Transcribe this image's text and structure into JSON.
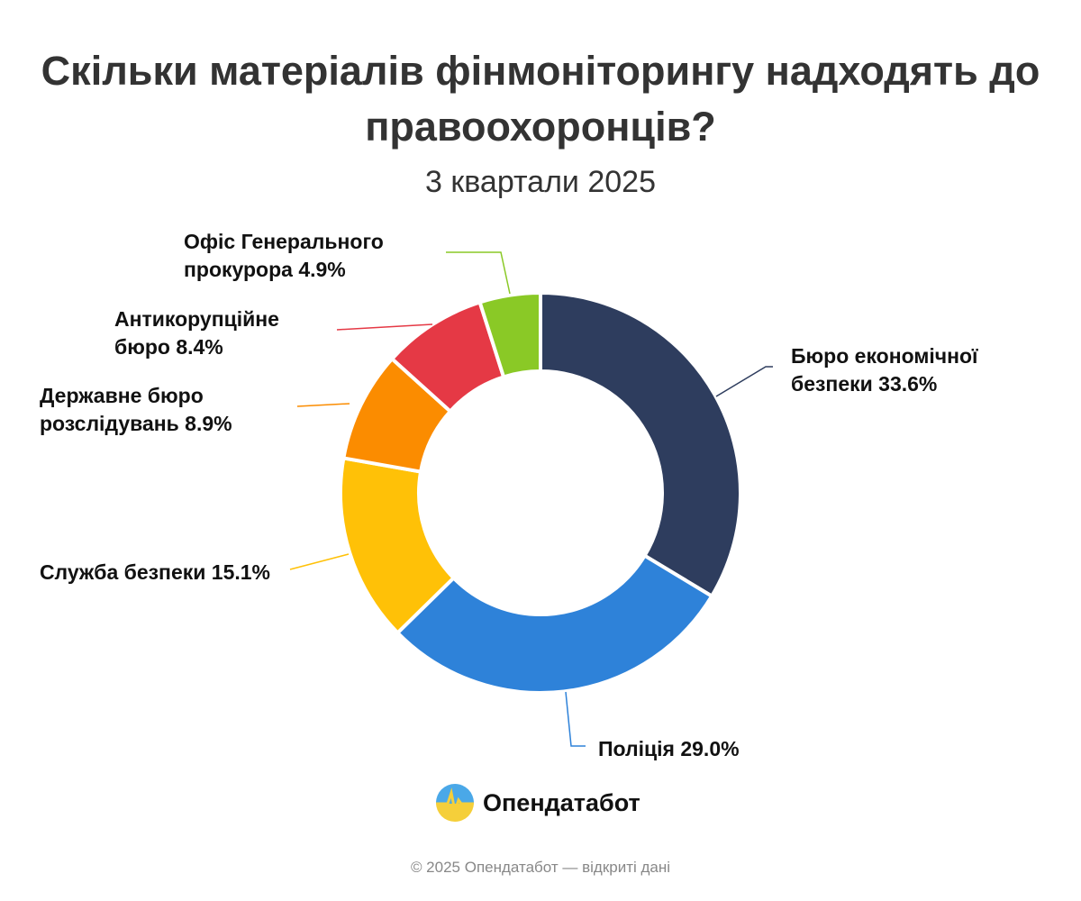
{
  "chart_data": {
    "type": "pie",
    "donut": true,
    "title": "Скільки матеріалів фінмоніторингу надходять до правоохоронців?",
    "subtitle": "3 квартали 2025",
    "start": "top",
    "direction": "clockwise",
    "slices": [
      {
        "label": "Бюро економічної безпеки 33.6%",
        "value": 33.6,
        "color": "#2e3d5e"
      },
      {
        "label": "Поліція 29.0%",
        "value": 29.0,
        "color": "#2e82d9"
      },
      {
        "label": "Служба безпеки 15.1%",
        "value": 15.1,
        "color": "#ffc107"
      },
      {
        "label": "Державне бюро розслідувань 8.9%",
        "value": 8.9,
        "color": "#fb8c00"
      },
      {
        "label": "Антикорупційне бюро 8.4%",
        "value": 8.4,
        "color": "#e53945"
      },
      {
        "label": "Офіс Генерального прокурора 4.9%",
        "value": 4.9,
        "color": "#8ac926"
      }
    ]
  },
  "logo": {
    "text": "Опендатабот"
  },
  "footer": "© 2025 Опендатабот — відкриті дані"
}
